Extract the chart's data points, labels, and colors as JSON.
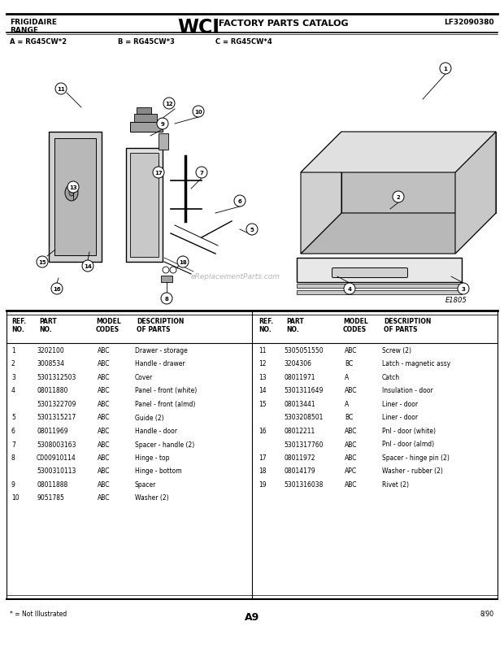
{
  "title_left1": "FRIGIDAIRE",
  "title_left2": "RANGE",
  "title_center_wci": "WCI",
  "title_center_text": " FACTORY PARTS CATALOG",
  "title_right": "LF32090380",
  "model_line_a": "A = RG45CW*2",
  "model_line_b": "B = RG45CW*3",
  "model_line_c": "C = RG45CW*4",
  "diagram_code": "E1805",
  "page": "A9",
  "date": "8/90",
  "footer_note": "* = Not Illustrated",
  "parts_left": [
    [
      "1",
      "3202100",
      "ABC",
      "Drawer - storage"
    ],
    [
      "2",
      "3008534",
      "ABC",
      "Handle - drawer"
    ],
    [
      "3",
      "5301312503",
      "ABC",
      "Cover"
    ],
    [
      "4",
      "08011880",
      "ABC",
      "Panel - front (white)"
    ],
    [
      "",
      "5301322709",
      "ABC",
      "Panel - front (almd)"
    ],
    [
      "5",
      "5301315217",
      "ABC",
      "Guide (2)"
    ],
    [
      "6",
      "08011969",
      "ABC",
      "Handle - door"
    ],
    [
      "7",
      "5308003163",
      "ABC",
      "Spacer - handle (2)"
    ],
    [
      "8",
      "C000910114",
      "ABC",
      "Hinge - top"
    ],
    [
      "",
      "5300310113",
      "ABC",
      "Hinge - bottom"
    ],
    [
      "9",
      "08011888",
      "ABC",
      "Spacer"
    ],
    [
      "10",
      "9051785",
      "ABC",
      "Washer (2)"
    ]
  ],
  "parts_right": [
    [
      "11",
      "5305051550",
      "ABC",
      "Screw (2)"
    ],
    [
      "12",
      "3204306",
      "BC",
      "Latch - magnetic assy"
    ],
    [
      "13",
      "08011971",
      "A",
      "Catch"
    ],
    [
      "14",
      "5301311649",
      "ABC",
      "Insulation - door"
    ],
    [
      "15",
      "08013441",
      "A",
      "Liner - door"
    ],
    [
      "",
      "5303208501",
      "BC",
      "Liner - door"
    ],
    [
      "16",
      "08012211",
      "ABC",
      "Pnl - door (white)"
    ],
    [
      "",
      "5301317760",
      "ABC",
      "Pnl - door (almd)"
    ],
    [
      "17",
      "08011972",
      "ABC",
      "Spacer - hinge pin (2)"
    ],
    [
      "18",
      "08014179",
      "APC",
      "Washer - rubber (2)"
    ],
    [
      "19",
      "5301316038",
      "ABC",
      "Rivet (2)"
    ]
  ],
  "bg_color": "#ffffff",
  "text_color": "#000000",
  "gray_text": "#555555"
}
